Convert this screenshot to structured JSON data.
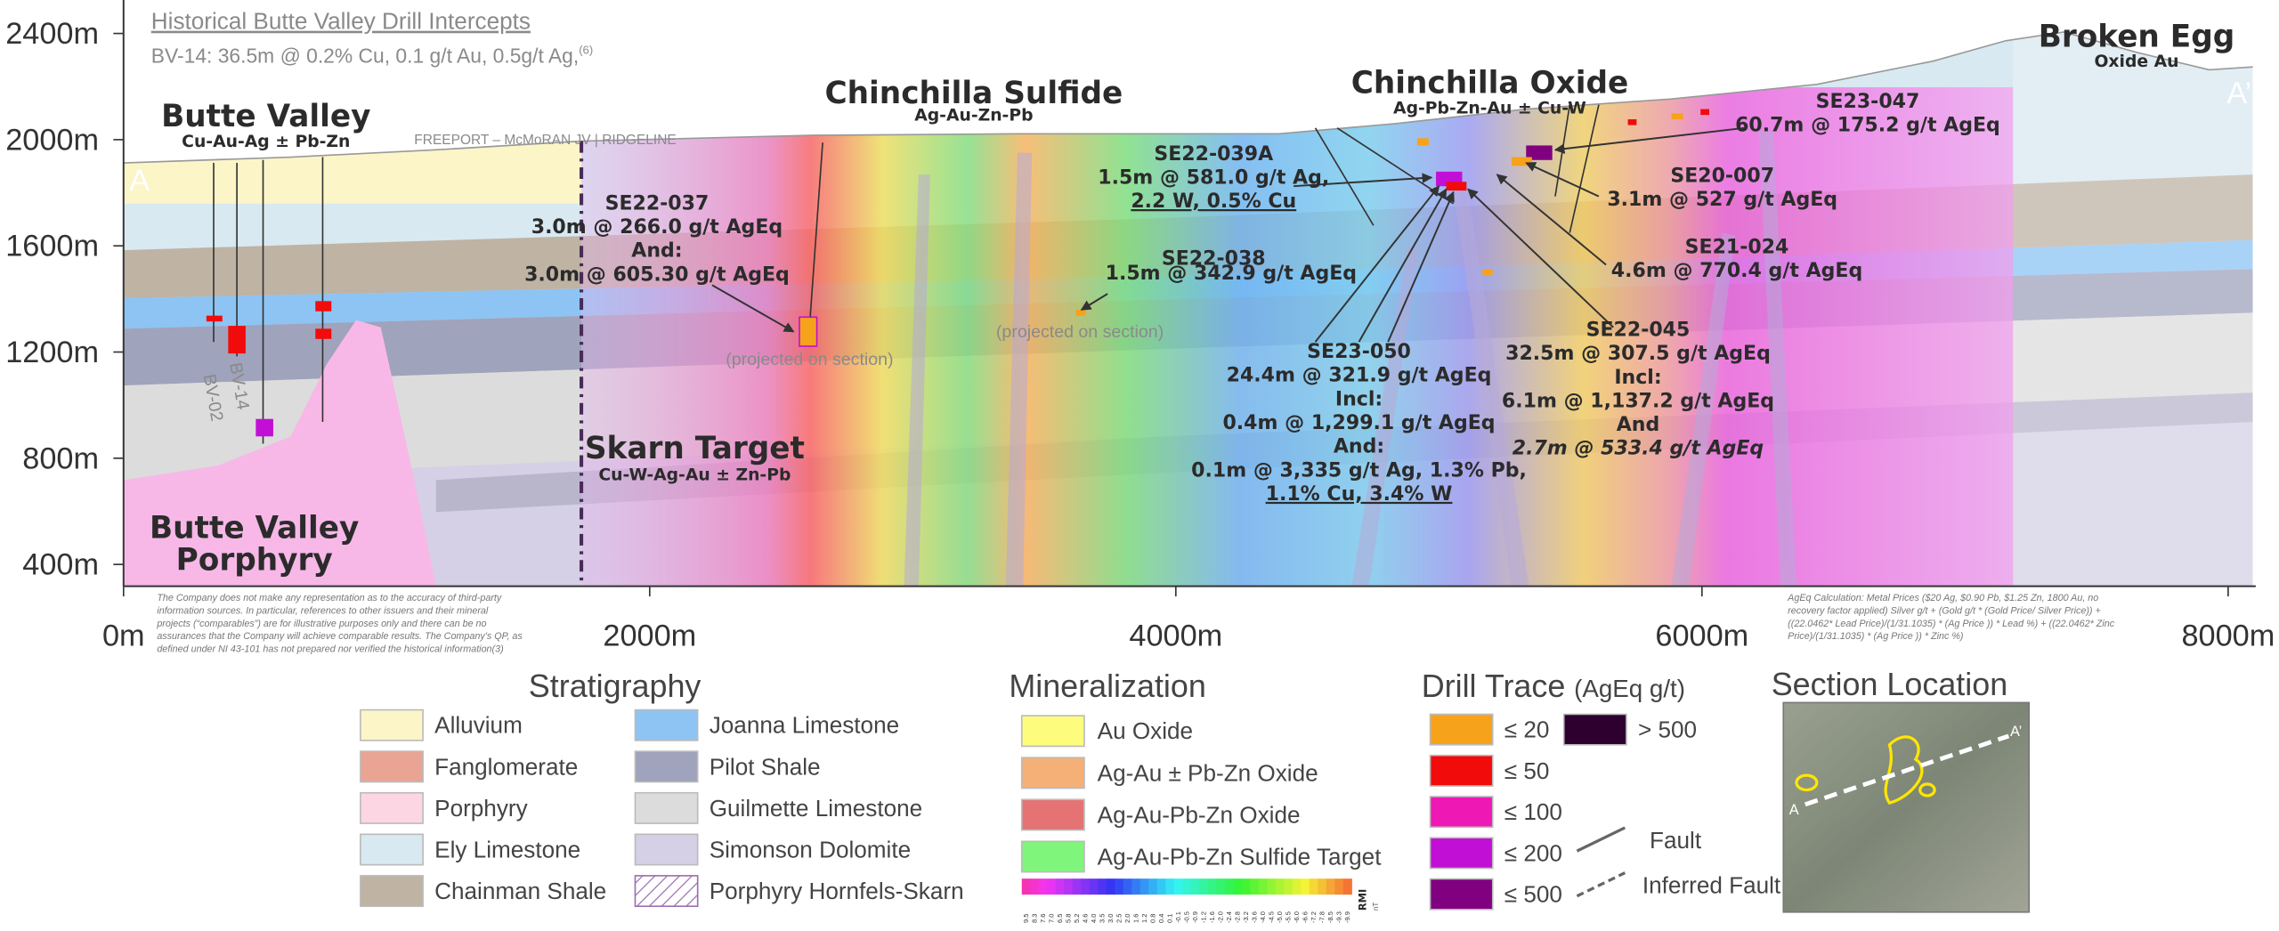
{
  "header": {
    "title": "Historical Butte Valley Drill Intercepts",
    "subtitle": "BV-14: 36.5m @ 0.2% Cu, 0.1 g/t Au, 0.5g/t Ag,",
    "subtitle_ref": "(6)"
  },
  "axes": {
    "y_ticks": [
      "2400m",
      "2000m",
      "1600m",
      "1200m",
      "800m",
      "400m"
    ],
    "x_ticks": [
      "0m",
      "2000m",
      "4000m",
      "6000m",
      "8000m"
    ]
  },
  "section_ends": [
    "A",
    "A’"
  ],
  "areas": [
    {
      "name": "Butte Valley",
      "detail": "Cu-Au-Ag ± Pb-Zn"
    },
    {
      "name": "Chinchilla Sulfide",
      "detail": "Ag-Au-Zn-Pb"
    },
    {
      "name": "Chinchilla Oxide",
      "detail": "Ag-Pb-Zn-Au ± Cu-W"
    },
    {
      "name": "Broken Egg",
      "detail": "Oxide Au"
    },
    {
      "name": "Skarn Target",
      "detail": "Cu-W-Ag-Au ± Zn-Pb"
    },
    {
      "name_lines": [
        "Butte Valley",
        "Porphyry"
      ]
    }
  ],
  "other_labels": [
    "FREEPORT – McMoRAN JV | RIDGELINE",
    "(projected on section)",
    "(projected on section)",
    "BV-14",
    "BV-02"
  ],
  "intercepts": [
    {
      "hole": "SE22-037",
      "lines": [
        "3.0m @ 266.0 g/t AgEq",
        "And:",
        "3.0m @ 605.30 g/t AgEq"
      ]
    },
    {
      "hole": "SE22-039A",
      "lines": [
        "1.5m @ 581.0 g/t Ag,",
        "2.2 W, 0.5% Cu"
      ]
    },
    {
      "hole": "SE22-038",
      "lines": [
        "1.5m @ 342.9 g/t AgEq"
      ]
    },
    {
      "hole": "SE23-050",
      "lines": [
        "24.4m @ 321.9 g/t AgEq",
        "Incl:",
        "0.4m @ 1,299.1 g/t AgEq",
        "And:",
        "0.1m @ 3,335 g/t Ag, 1.3% Pb,",
        "1.1% Cu, 3.4% W"
      ]
    },
    {
      "hole": "SE22-045",
      "lines": [
        "32.5m @ 307.5 g/t AgEq",
        "Incl:",
        "6.1m @ 1,137.2 g/t AgEq",
        "And",
        "2.7m @ 533.4 g/t AgEq"
      ]
    },
    {
      "hole": "SE23-047",
      "lines": [
        "60.7m @ 175.2 g/t AgEq"
      ]
    },
    {
      "hole": "SE20-007",
      "lines": [
        "3.1m @ 527 g/t AgEq"
      ]
    },
    {
      "hole": "SE21-024",
      "lines": [
        "4.6m @ 770.4 g/t AgEq"
      ]
    }
  ],
  "disclaimers": {
    "left": [
      "The Company does not make any representation as to the accuracy of third-party",
      "information sources. In particular, references to other issuers and their mineral",
      "projects (“comparables”) are for illustrative purposes only and there can be no",
      "assurances that the Company will achieve comparable results. The Company’s QP, as",
      "defined under NI 43-101 has not prepared nor verified the historical information(3)"
    ],
    "right": [
      "AgEq Calculation: Metal Prices ($20 Ag, $0.90 Pb, $1.25 Zn, 1800 Au, no",
      "recovery factor applied) Silver g/t + (Gold g/t * (Gold Price/ Silver Price)) +",
      "((22.0462* Lead Price)/(1/31.1035) * (Ag Price )) * Lead %) + ((22.0462* Zinc",
      "Price)/(1/31.1035) * (Ag Price )) * Zinc %)"
    ]
  },
  "legends": {
    "stratigraphy": {
      "title": "Stratigraphy",
      "items": [
        {
          "label": "Alluvium",
          "color": "#fbf5c8"
        },
        {
          "label": "Fanglomerate",
          "color": "#e9a493"
        },
        {
          "label": "Porphyry",
          "color": "#fcd7e3"
        },
        {
          "label": "Ely Limestone",
          "color": "#d8e9f1"
        },
        {
          "label": "Chainman Shale",
          "color": "#bfb3a4"
        },
        {
          "label": "Joanna Limestone",
          "color": "#8dc4f3"
        },
        {
          "label": "Pilot Shale",
          "color": "#9fa3bb"
        },
        {
          "label": "Guilmette Limestone",
          "color": "#dcdcdc"
        },
        {
          "label": "Simonson Dolomite",
          "color": "#d5d0e5"
        },
        {
          "label": "Porphyry Hornfels-Skarn",
          "color": "#9b6fb0",
          "pattern": "hatch"
        }
      ]
    },
    "mineralization": {
      "title": "Mineralization",
      "items": [
        {
          "label": "Au Oxide",
          "color": "#fdfc7d"
        },
        {
          "label": "Ag-Au ± Pb-Zn Oxide",
          "color": "#f4b077"
        },
        {
          "label": "Ag-Au-Pb-Zn Oxide",
          "color": "#e57373"
        },
        {
          "label": "Ag-Au-Pb-Zn Sulfide Target",
          "color": "#80f57c"
        }
      ],
      "colorbar": {
        "title": "RMI",
        "unit": "nT",
        "labels": [
          "9.5",
          "8.3",
          "7.6",
          "7.0",
          "6.5",
          "5.8",
          "5.2",
          "4.6",
          "4.0",
          "3.5",
          "3.0",
          "2.5",
          "2.0",
          "1.6",
          "1.2",
          "0.8",
          "0.4",
          "0.1",
          "-0.1",
          "-0.5",
          "-0.9",
          "-1.2",
          "-1.6",
          "-2.0",
          "-2.4",
          "-2.8",
          "-3.2",
          "-3.6",
          "-4.0",
          "-4.5",
          "-5.0",
          "-5.5",
          "-6.0",
          "-6.6",
          "-7.2",
          "-7.8",
          "-8.5",
          "-9.3",
          "-9.9"
        ]
      }
    },
    "drill_trace": {
      "title": "Drill Trace",
      "unit": "(AgEq g/t)",
      "items": [
        {
          "label": "≤ 20",
          "color": "#f7a21b"
        },
        {
          "label": "≤ 50",
          "color": "#f20b0b"
        },
        {
          "label": "≤ 100",
          "color": "#ee18b4"
        },
        {
          "label": "≤ 200",
          "color": "#c20fd6"
        },
        {
          "label": "≤ 500",
          "color": "#800080"
        },
        {
          "label": "> 500",
          "color": "#2e0030"
        }
      ],
      "lines": [
        "Fault",
        "Inferred Fault"
      ]
    },
    "section_location": {
      "title": "Section Location",
      "labels": [
        "A",
        "A’"
      ]
    }
  }
}
